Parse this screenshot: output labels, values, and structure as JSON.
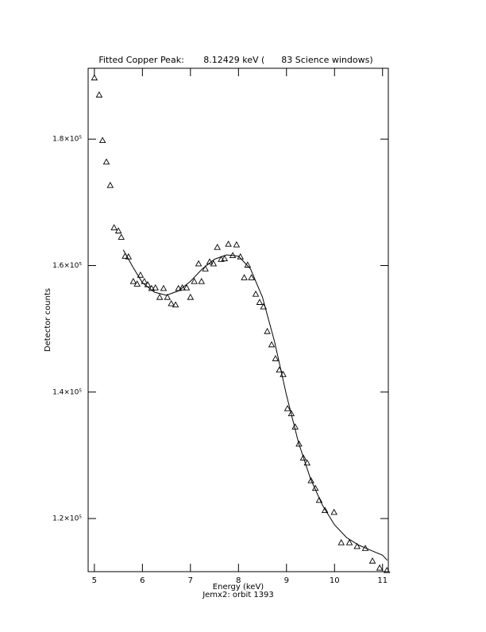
{
  "chart_data": {
    "type": "scatter",
    "title": "Fitted Copper Peak:       8.12429 keV (      83 Science windows)",
    "xlabel": "Energy (keV)",
    "ylabel": "Detector counts",
    "subtitle": "Jemx2: orbit 1393",
    "xlim": [
      4.87,
      11.12
    ],
    "ylim": [
      111600,
      191200
    ],
    "xticks": [
      5,
      6,
      7,
      8,
      9,
      10,
      11
    ],
    "yticks": [
      {
        "value": 120000,
        "label": "1.2×10⁵"
      },
      {
        "value": 140000,
        "label": "1.4×10⁵"
      },
      {
        "value": 160000,
        "label": "1.6×10⁵"
      },
      {
        "value": 180000,
        "label": "1.8×10⁵"
      }
    ],
    "color": "#000000",
    "points": {
      "x": [
        5.0,
        5.1,
        5.17,
        5.25,
        5.33,
        5.41,
        5.5,
        5.56,
        5.64,
        5.71,
        5.81,
        5.89,
        5.96,
        6.04,
        6.11,
        6.19,
        6.27,
        6.36,
        6.44,
        6.52,
        6.6,
        6.69,
        6.75,
        6.83,
        6.92,
        7.0,
        7.08,
        7.17,
        7.23,
        7.31,
        7.4,
        7.48,
        7.56,
        7.64,
        7.71,
        7.79,
        7.88,
        7.96,
        8.04,
        8.12,
        8.19,
        8.27,
        8.36,
        8.44,
        8.52,
        8.6,
        8.69,
        8.77,
        8.85,
        8.93,
        9.02,
        9.1,
        9.18,
        9.26,
        9.35,
        9.43,
        9.51,
        9.6,
        9.68,
        9.8,
        9.99,
        10.14,
        10.31,
        10.47,
        10.64,
        10.79,
        10.94,
        11.09
      ],
      "values": [
        189700,
        187000,
        179800,
        176400,
        172700,
        166000,
        165500,
        164500,
        161500,
        161400,
        157500,
        157100,
        158500,
        157500,
        157000,
        156400,
        156500,
        155000,
        156400,
        155000,
        154000,
        153800,
        156400,
        156500,
        156500,
        155000,
        157500,
        160300,
        157500,
        159500,
        160600,
        160300,
        162900,
        161000,
        161100,
        163400,
        161600,
        163300,
        161400,
        158100,
        160100,
        158100,
        155500,
        154200,
        153500,
        149600,
        147500,
        145300,
        143500,
        142800,
        137400,
        136600,
        134500,
        131800,
        129600,
        128800,
        126000,
        124800,
        122900,
        121300,
        121000,
        116200,
        116200,
        115600,
        115300,
        113300,
        112200,
        111800
      ]
    },
    "fit": {
      "x": [
        5.6,
        5.8,
        6.0,
        6.25,
        6.5,
        6.75,
        7.0,
        7.25,
        7.5,
        7.75,
        8.0,
        8.25,
        8.5,
        8.75,
        9.0,
        9.25,
        9.5,
        9.75,
        10.0,
        10.25,
        10.5,
        10.75,
        11.0,
        11.1
      ],
      "values": [
        162500,
        159800,
        157300,
        155800,
        155300,
        156000,
        157500,
        159500,
        161000,
        161700,
        161500,
        159500,
        155000,
        148000,
        139500,
        132000,
        126300,
        122100,
        119000,
        117000,
        115800,
        115000,
        114200,
        113400
      ]
    }
  }
}
